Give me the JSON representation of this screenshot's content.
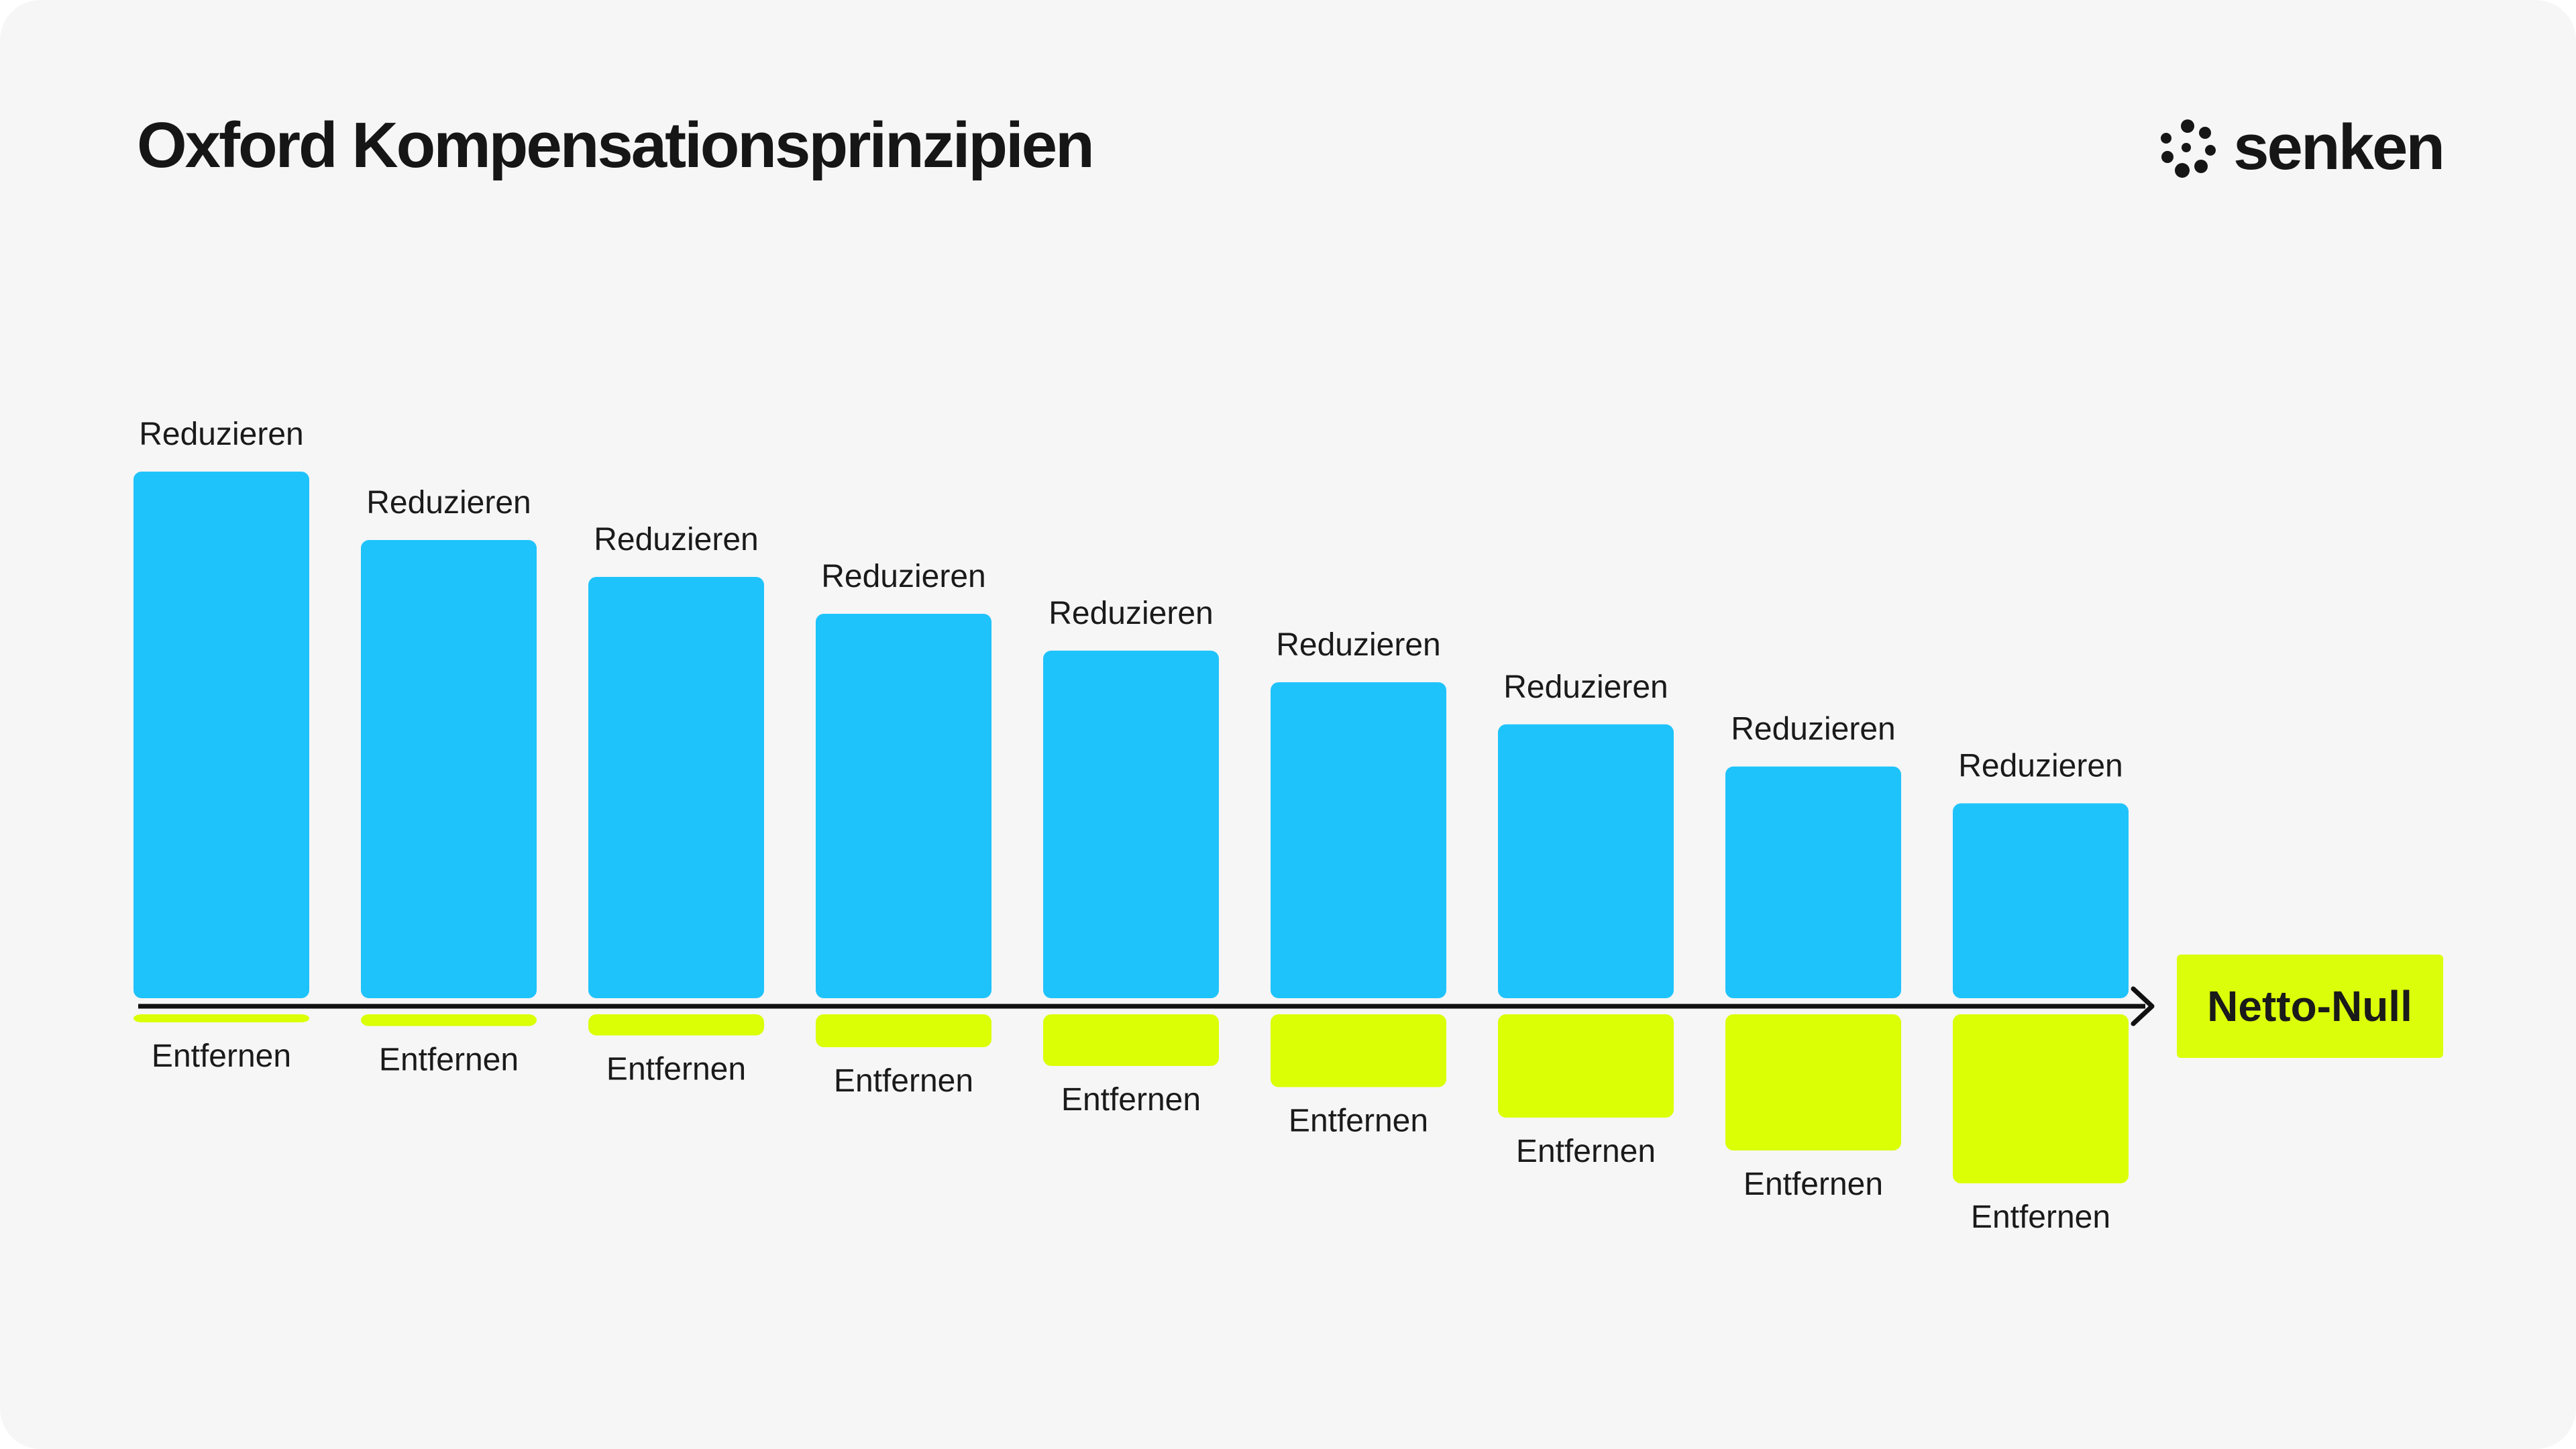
{
  "title": "Oxford Kompensationsprinzipien",
  "brand": {
    "name": "senken",
    "icon": "dotted-flower-logo-icon"
  },
  "colors": {
    "background": "#f6f6f6",
    "reduce": "#1fc3fb",
    "remove": "#dbff05",
    "axis": "#111111",
    "end_badge": "#dbff0a"
  },
  "chart_data": {
    "type": "bar",
    "description_type": "diverging stacked bar",
    "categories": [
      "",
      "",
      "",
      "",
      "",
      "",
      "",
      "",
      ""
    ],
    "series": [
      {
        "name": "Reduzieren",
        "values": [
          100,
          87,
          80,
          73,
          66,
          60,
          52,
          44,
          37
        ]
      },
      {
        "name": "Entfernen",
        "values": [
          -1,
          -2.5,
          -4.5,
          -7,
          -11,
          -15.5,
          -22,
          -29,
          -36
        ]
      }
    ],
    "top_label": "Reduzieren",
    "bottom_label": "Entfernen",
    "end_label": "Netto-Null",
    "ylim": [
      -40,
      100
    ],
    "grid": false,
    "legend": "none"
  }
}
